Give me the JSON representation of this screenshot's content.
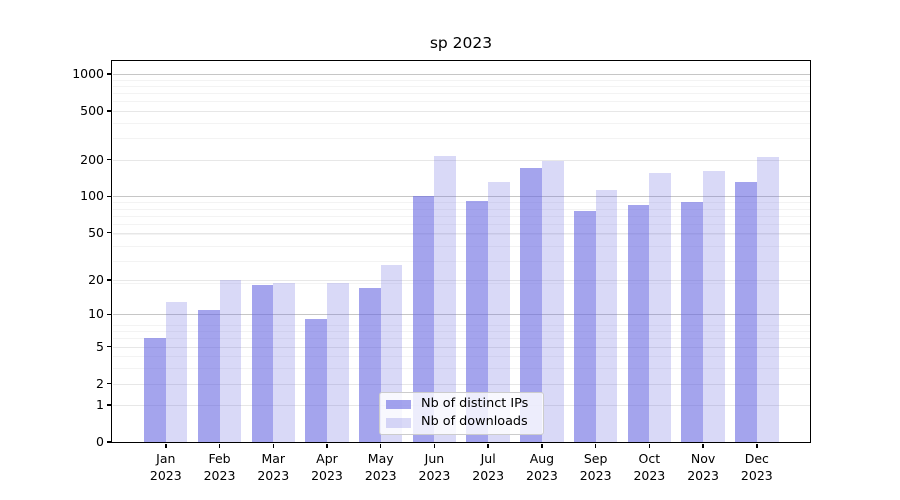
{
  "title": "sp 2023",
  "colors": {
    "ips_bar": "rgba(103,103,225,0.60)",
    "downloads_bar": "rgba(103,103,225,0.25)",
    "grid_major": "#c6c6c6",
    "grid_labeled": "#e7e7e7",
    "grid_minor": "#f3f3f3",
    "spine": "#000000",
    "text": "#000000",
    "legend_bg": "rgba(255,255,255,0.8)",
    "legend_border": "#cccccc"
  },
  "legend": {
    "items": [
      {
        "label": "Nb of distinct IPs",
        "color_key": "ips_bar"
      },
      {
        "label": "Nb of downloads",
        "color_key": "downloads_bar"
      }
    ]
  },
  "y_axis": {
    "tick_labels": [
      "0",
      "1",
      "2",
      "5",
      "10",
      "20",
      "50",
      "100",
      "200",
      "500",
      "1000"
    ]
  },
  "x_axis": {
    "months": [
      "Jan",
      "Feb",
      "Mar",
      "Apr",
      "May",
      "Jun",
      "Jul",
      "Aug",
      "Sep",
      "Oct",
      "Nov",
      "Dec"
    ],
    "year": "2023"
  },
  "chart_data": {
    "type": "bar",
    "title": "sp 2023",
    "categories": [
      "Jan 2023",
      "Feb 2023",
      "Mar 2023",
      "Apr 2023",
      "May 2023",
      "Jun 2023",
      "Jul 2023",
      "Aug 2023",
      "Sep 2023",
      "Oct 2023",
      "Nov 2023",
      "Dec 2023"
    ],
    "series": [
      {
        "name": "Nb of distinct IPs",
        "values": [
          6,
          11,
          18,
          9,
          17,
          100,
          92,
          170,
          75,
          85,
          90,
          130
        ]
      },
      {
        "name": "Nb of downloads",
        "values": [
          13,
          20,
          19,
          19,
          27,
          215,
          130,
          195,
          112,
          155,
          160,
          210
        ]
      }
    ],
    "yscale": "log10(1+x)",
    "yticks": [
      0,
      1,
      2,
      5,
      10,
      20,
      50,
      100,
      200,
      500,
      1000
    ],
    "ylim": [
      0,
      1280
    ],
    "xlabel": "",
    "ylabel": "",
    "grid": true,
    "legend_position": "lower center"
  }
}
